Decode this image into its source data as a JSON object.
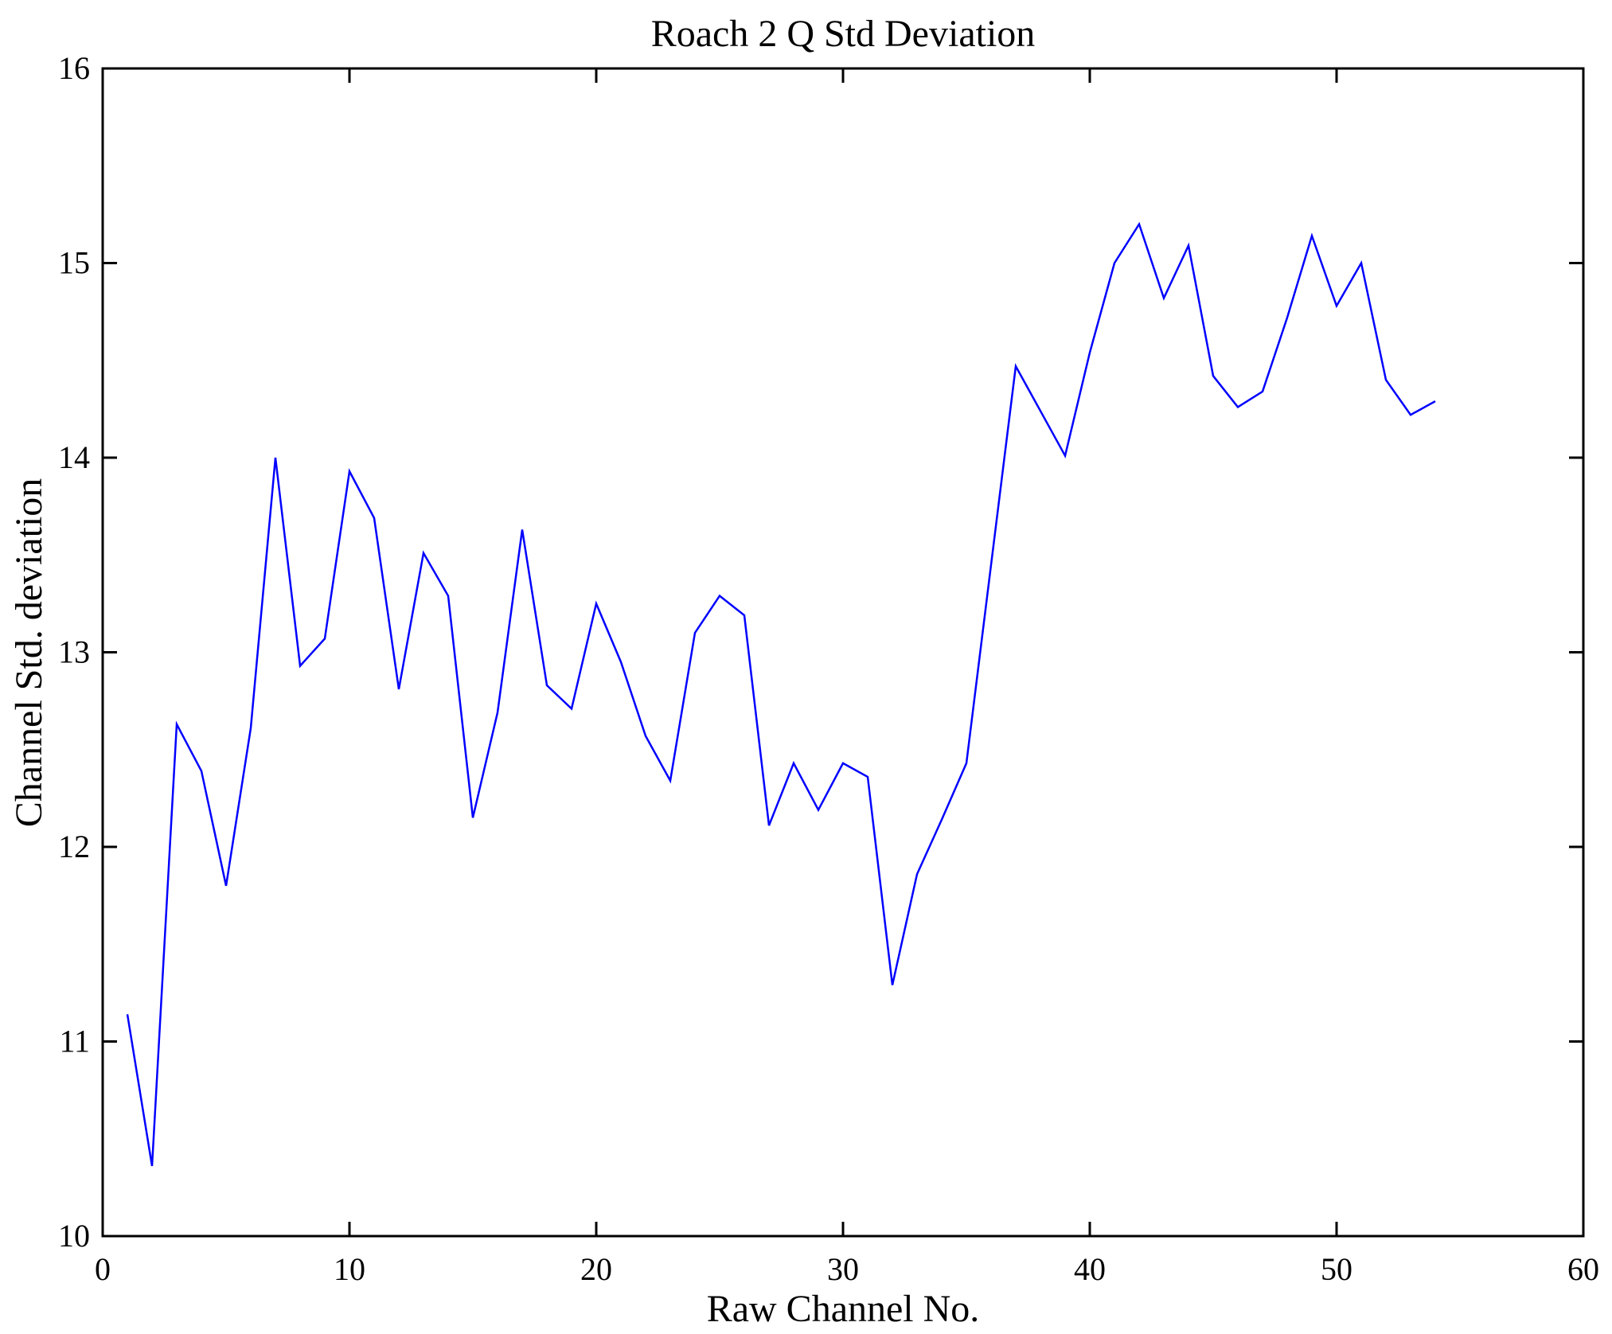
{
  "figure": {
    "title": "Roach 2 Q Std Deviation",
    "xlabel": "Raw Channel No.",
    "ylabel": "Channel Std. deviation"
  },
  "chart_data": {
    "type": "line",
    "title": "Roach 2 Q Std Deviation",
    "xlabel": "Raw Channel No.",
    "ylabel": "Channel Std. deviation",
    "xlim": [
      0,
      60
    ],
    "ylim": [
      10,
      16
    ],
    "xticks": [
      0,
      10,
      20,
      30,
      40,
      50,
      60
    ],
    "yticks": [
      10,
      11,
      12,
      13,
      14,
      15,
      16
    ],
    "grid": false,
    "legend": null,
    "line_color": "#0000ff",
    "axis_color": "#000000",
    "background_color": "#ffffff",
    "series": [
      {
        "name": "Channel Std. deviation",
        "x": [
          1,
          2,
          3,
          4,
          5,
          6,
          7,
          8,
          9,
          10,
          11,
          12,
          13,
          14,
          15,
          16,
          17,
          18,
          19,
          20,
          21,
          22,
          23,
          24,
          25,
          26,
          27,
          28,
          29,
          30,
          31,
          32,
          33,
          34,
          35,
          36,
          37,
          38,
          39,
          40,
          41,
          42,
          43,
          44,
          45,
          46,
          47,
          48,
          49,
          50,
          51,
          52,
          53,
          54
        ],
        "values": [
          11.14,
          10.36,
          12.63,
          12.39,
          11.8,
          12.61,
          14.0,
          12.93,
          13.07,
          13.93,
          13.69,
          12.81,
          13.51,
          13.29,
          12.15,
          12.69,
          13.63,
          12.83,
          12.71,
          13.25,
          12.95,
          12.57,
          12.34,
          13.1,
          13.29,
          13.19,
          12.11,
          12.43,
          12.19,
          12.43,
          12.36,
          11.29,
          11.86,
          12.14,
          12.43,
          13.45,
          14.47,
          14.24,
          14.01,
          14.54,
          15.0,
          15.2,
          14.82,
          15.09,
          14.42,
          14.26,
          14.34,
          14.72,
          15.14,
          14.78,
          15.0,
          14.4,
          14.22,
          14.29
        ]
      }
    ]
  }
}
